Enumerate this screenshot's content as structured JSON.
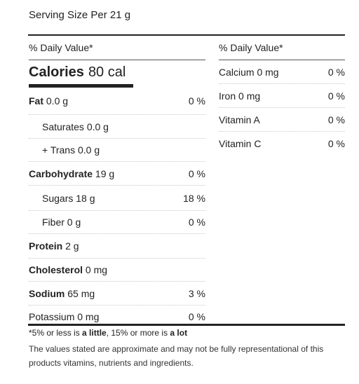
{
  "serving": "Serving Size Per 21 g",
  "dv_header": "% Daily Value*",
  "calories": {
    "label": "Calories",
    "value": "80 cal"
  },
  "left_rows": [
    {
      "label": "Fat",
      "amount": "0.0 g",
      "pct": "0 %",
      "bold": true
    },
    {
      "label": "Saturates",
      "amount": "0.0 g",
      "pct": "",
      "indent": true
    },
    {
      "label": "+ Trans",
      "amount": "0.0 g",
      "pct": "",
      "indent": true
    },
    {
      "label": "Carbohydrate",
      "amount": "19 g",
      "pct": "0 %",
      "bold": true
    },
    {
      "label": "Sugars",
      "amount": "18 g",
      "pct": "18 %",
      "indent": true
    },
    {
      "label": "Fiber",
      "amount": "0 g",
      "pct": "0 %",
      "indent": true
    },
    {
      "label": "Protein",
      "amount": "2 g",
      "pct": "",
      "bold": true
    },
    {
      "label": "Cholesterol",
      "amount": "0 mg",
      "pct": "",
      "bold": true
    },
    {
      "label": "Sodium",
      "amount": "65 mg",
      "pct": "3 %",
      "bold": true
    },
    {
      "label": "Potassium",
      "amount": "0 mg",
      "pct": "0 %"
    }
  ],
  "right_rows": [
    {
      "label": "Calcium 0 mg",
      "pct": "0 %"
    },
    {
      "label": "Iron 0 mg",
      "pct": "0 %"
    },
    {
      "label": "Vitamin A",
      "pct": "0 %"
    },
    {
      "label": "Vitamin C",
      "pct": "0 %"
    }
  ],
  "footnote": {
    "a": "*5% or less is ",
    "b": "a little",
    "c": ", 15% or more is ",
    "d": "a lot"
  },
  "disclaimer": "The values stated are approximate and may not be fully representational of this products vitamins, nutrients and ingredients."
}
